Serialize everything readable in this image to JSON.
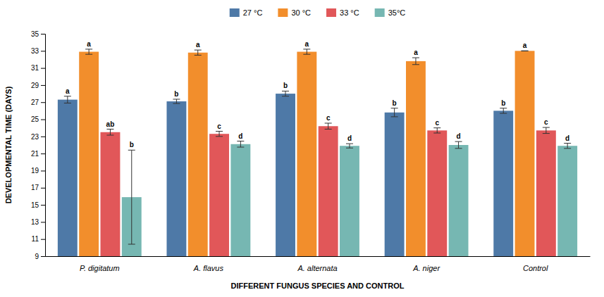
{
  "chart_data": {
    "type": "bar",
    "categories": [
      "P. digitatum",
      "A. flavus",
      "A. alternata",
      "A. niger",
      "Control"
    ],
    "series": [
      {
        "name": "27 °C",
        "values": [
          27.3,
          27.1,
          28.0,
          25.8,
          26.0
        ],
        "errors": [
          0.4,
          0.25,
          0.3,
          0.5,
          0.3
        ],
        "annotations": [
          "a",
          "b",
          "b",
          "b",
          "b"
        ]
      },
      {
        "name": "30 °C",
        "values": [
          32.9,
          32.8,
          32.9,
          31.8,
          33.0
        ],
        "errors": [
          0.3,
          0.3,
          0.3,
          0.4,
          0.0
        ],
        "annotations": [
          "a",
          "a",
          "a",
          "a",
          "a"
        ]
      },
      {
        "name": "33 °C",
        "values": [
          23.5,
          23.3,
          24.2,
          23.7,
          23.7
        ],
        "errors": [
          0.35,
          0.3,
          0.35,
          0.3,
          0.35
        ],
        "annotations": [
          "ab",
          "c",
          "c",
          "c",
          "c"
        ]
      },
      {
        "name": "35°C",
        "values": [
          15.9,
          22.1,
          21.9,
          22.0,
          21.9
        ],
        "errors": [
          5.5,
          0.35,
          0.25,
          0.4,
          0.3
        ],
        "annotations": [
          "b",
          "d",
          "d",
          "d",
          "d"
        ]
      }
    ],
    "ylabel": "DEVELOPMENTAL TIME (DAYS)",
    "xlabel": "DIFFERENT FUNGUS SPECIES AND CONTROL",
    "ylim": [
      9,
      35
    ],
    "yticks": [
      9,
      11,
      13,
      15,
      17,
      19,
      21,
      23,
      25,
      27,
      29,
      31,
      33,
      35
    ],
    "grid": false,
    "legend": "top"
  }
}
